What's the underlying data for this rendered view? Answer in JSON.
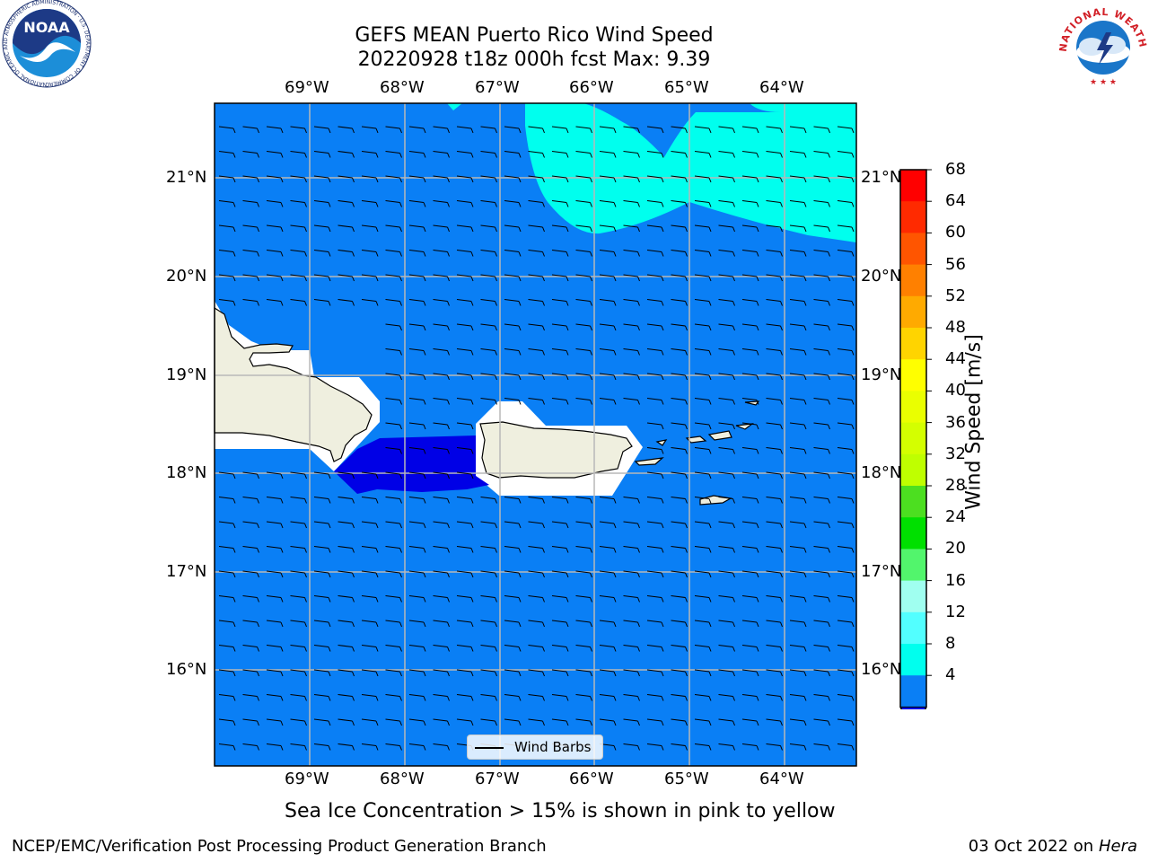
{
  "header": {
    "title_line1": "GEFS MEAN Puerto Rico Wind Speed",
    "title_line2": "20220928 t18z 000h fcst   Max: 9.39"
  },
  "logos": {
    "noaa_text": "NOAA",
    "noaa_ring": "NATIONAL OCEANIC AND ATMOSPHERIC ADMINISTRATION · U.S. DEPARTMENT OF COMMERCE",
    "nws_ring": "NATIONAL WEATHER SERVICE"
  },
  "map": {
    "lon_ticks": [
      "69°W",
      "68°W",
      "67°W",
      "66°W",
      "65°W",
      "64°W"
    ],
    "lat_ticks": [
      "21°N",
      "20°N",
      "19°N",
      "18°N",
      "17°N",
      "16°N"
    ],
    "legend_label": "Wind Barbs",
    "colors": {
      "ocean_4_8": "#0a7ff5",
      "wind_8_12": "#00ffee",
      "below_4": "#0000e6",
      "land": "#efefdf",
      "masked": "#ffffff"
    }
  },
  "colorbar": {
    "label": "Wind Speed [m/s]",
    "ticks": [
      "68",
      "64",
      "60",
      "56",
      "52",
      "48",
      "44",
      "40",
      "36",
      "32",
      "28",
      "24",
      "20",
      "16",
      "12",
      "8",
      "4"
    ],
    "colors_top_to_bottom": [
      "#ff0000",
      "#ff2a00",
      "#ff5500",
      "#ff8000",
      "#ffaa00",
      "#ffd400",
      "#ffff00",
      "#eaff00",
      "#d4ff00",
      "#bfff00",
      "#4cdf20",
      "#00e000",
      "#52f56c",
      "#a0fff0",
      "#52ffff",
      "#00ffee",
      "#0a7ff5"
    ],
    "extend_color": "#0000e6"
  },
  "annotation": {
    "ice_note": "Sea Ice Concentration > 15% is shown in pink to yellow"
  },
  "footer": {
    "left": "NCEP/EMC/Verification Post Processing Product Generation Branch",
    "right_prefix": "03 Oct 2022 on ",
    "right_host": "Hera"
  }
}
